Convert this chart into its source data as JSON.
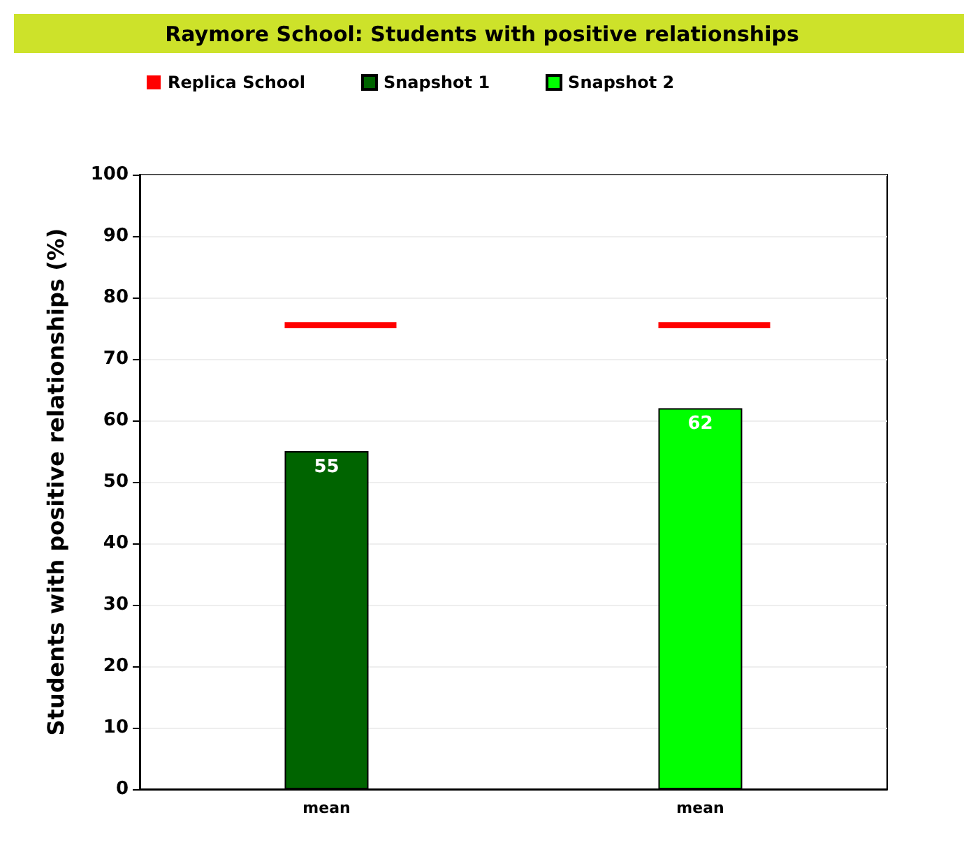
{
  "chart_data": {
    "type": "bar",
    "title": "Raymore School: Students with positive relationships",
    "ylabel": "Students with positive relationships (%)",
    "categories": [
      "mean",
      "mean"
    ],
    "series": [
      {
        "name": "Replica School",
        "color": "#ff0000",
        "base": [
          75,
          75
        ],
        "values": [
          1,
          1
        ]
      },
      {
        "name": "Snapshot 1",
        "color": "#006400",
        "values": [
          55,
          null
        ],
        "value_labels": [
          "55",
          null
        ]
      },
      {
        "name": "Snapshot 2",
        "color": "#00ff00",
        "values": [
          null,
          62
        ],
        "value_labels": [
          null,
          "62"
        ]
      }
    ],
    "ylim": [
      0,
      100
    ],
    "yticks": [
      0,
      10,
      20,
      30,
      40,
      50,
      60,
      70,
      80,
      90,
      100
    ],
    "grid": "y",
    "legend": "top"
  }
}
